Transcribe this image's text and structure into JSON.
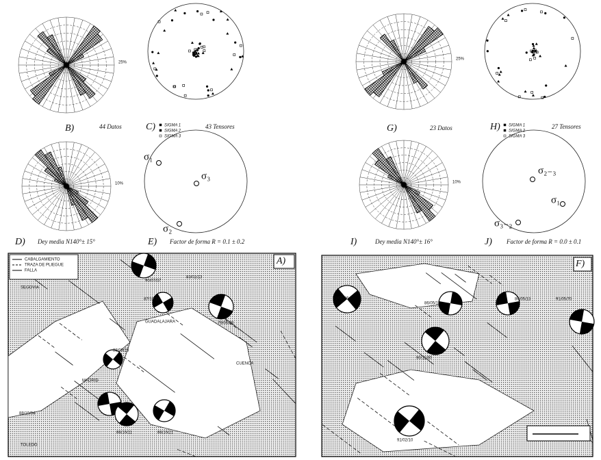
{
  "panels": {
    "B": {
      "label": "B)",
      "caption": "44 Datos",
      "scale": "25%"
    },
    "C": {
      "label": "C)",
      "caption": "43 Tensores",
      "legend": [
        "SIGMA 1",
        "SIGMA 2",
        "SIGMA 3"
      ]
    },
    "D": {
      "label": "D)",
      "caption": "Dey media N140°± 15°",
      "scale": "10%"
    },
    "E": {
      "label": "E)",
      "caption": "Factor de forma R = 0.1 ± 0.2",
      "sigmas": [
        "σ₁",
        "σ₃",
        "σ₂"
      ]
    },
    "G": {
      "label": "G)",
      "caption": "23 Datos",
      "scale": "25%"
    },
    "H": {
      "label": "H)",
      "caption": "27 Tensores",
      "legend": [
        "SIGMA 1",
        "SIGMA 2",
        "SIGMA 3"
      ]
    },
    "I": {
      "label": "I)",
      "caption": "Dey media N140°± 16°",
      "scale": "10%"
    },
    "J": {
      "label": "J)",
      "caption": "Factor de forma R = 0.0 ± 0.1",
      "sigmas": [
        "σ₂₋₃",
        "σ₁",
        "σ₃₋₂"
      ]
    },
    "A": {
      "label": "A)",
      "legend": [
        "CABALGAMIENTO",
        "TRAZA DE PLIEGUE",
        "FALLA"
      ],
      "places": [
        "SEGOVIA",
        "GUADALAJARA",
        "MADRID",
        "TOLEDO",
        "CUENCA"
      ],
      "events": [
        "90/07/07",
        "83/02/13",
        "87/10/19",
        "79/06/30",
        "88/09/28",
        "88/10/04",
        "88/10/11",
        "88/10/21"
      ]
    },
    "F": {
      "label": "F)",
      "events": [
        "91/02/06",
        "86/05/13",
        "86/05/13",
        "91/05/70",
        "90/11/30",
        "91/02/10"
      ]
    }
  }
}
